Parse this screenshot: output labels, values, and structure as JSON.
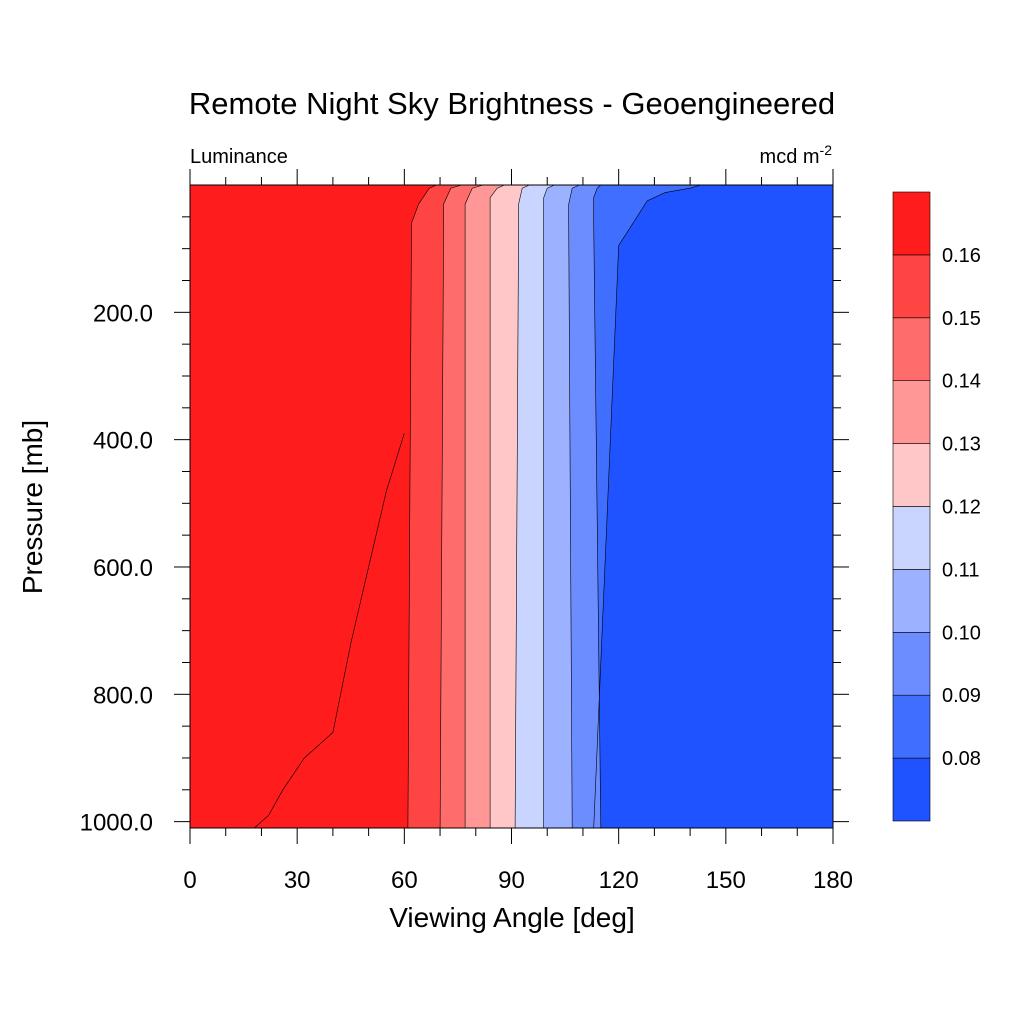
{
  "chart_data": {
    "type": "contour",
    "title": "Remote Night Sky Brightness - Geoengineered",
    "left_string": "Luminance",
    "right_string": "mcd m",
    "right_string_exponent": "-2",
    "xlabel": "Viewing Angle [deg]",
    "ylabel": "Pressure [mb]",
    "xlim": [
      0,
      180
    ],
    "ylim": [
      0,
      1010
    ],
    "y_inverted": true,
    "xticks": [
      0,
      30,
      60,
      90,
      120,
      150,
      180
    ],
    "xtick_labels": [
      "0",
      "30",
      "60",
      "90",
      "120",
      "150",
      "180"
    ],
    "yticks": [
      200,
      400,
      600,
      800,
      1000
    ],
    "ytick_labels": [
      "200.0",
      "400.0",
      "600.0",
      "800.0",
      "1000.0"
    ],
    "levels": [
      0.08,
      0.085,
      0.09,
      0.095,
      0.1,
      0.105,
      0.11,
      0.115,
      0.12,
      0.125,
      0.13,
      0.135,
      0.14,
      0.145,
      0.15,
      0.155,
      0.16
    ],
    "colorbar_labels": [
      "0.08",
      "0.09",
      "0.10",
      "0.11",
      "0.12",
      "0.13",
      "0.14",
      "0.15",
      "0.16"
    ],
    "fill_colors": [
      "#1e53ff",
      "#406eff",
      "#6c8dff",
      "#9cb1ff",
      "#c9d5ff",
      "#ffc7c7",
      "#ff9797",
      "#ff6c6c",
      "#ff4444",
      "#ff1c1c"
    ],
    "contour_lines": [
      {
        "points": [
          [
            143,
            0
          ],
          [
            140,
            5
          ],
          [
            137,
            8
          ],
          [
            133,
            12
          ],
          [
            128,
            25
          ],
          [
            124,
            60
          ],
          [
            120,
            95
          ],
          [
            113,
            1010
          ]
        ]
      },
      {
        "points": [
          [
            115,
            0
          ],
          [
            114,
            5
          ],
          [
            113,
            20
          ],
          [
            113,
            60
          ],
          [
            115,
            1010
          ]
        ]
      },
      {
        "points": [
          [
            109,
            0
          ],
          [
            107,
            5
          ],
          [
            106,
            30
          ],
          [
            106,
            60
          ],
          [
            107,
            1010
          ]
        ]
      },
      {
        "points": [
          [
            102,
            0
          ],
          [
            100,
            5
          ],
          [
            99,
            20
          ],
          [
            99,
            60
          ],
          [
            99,
            1010
          ]
        ]
      },
      {
        "points": [
          [
            95,
            0
          ],
          [
            93,
            5
          ],
          [
            92,
            30
          ],
          [
            92,
            60
          ],
          [
            91,
            1010
          ]
        ]
      },
      {
        "points": [
          [
            88,
            0
          ],
          [
            86,
            5
          ],
          [
            84,
            20
          ],
          [
            84,
            60
          ],
          [
            84,
            1010
          ]
        ]
      },
      {
        "points": [
          [
            82,
            0
          ],
          [
            79,
            5
          ],
          [
            77,
            30
          ],
          [
            77,
            60
          ],
          [
            77,
            1010
          ]
        ]
      },
      {
        "points": [
          [
            76,
            0
          ],
          [
            73,
            5
          ],
          [
            71,
            30
          ],
          [
            71,
            60
          ],
          [
            70,
            1010
          ]
        ]
      },
      {
        "points": [
          [
            69,
            0
          ],
          [
            67,
            5
          ],
          [
            64,
            30
          ],
          [
            62,
            60
          ],
          [
            61,
            1010
          ]
        ]
      },
      {
        "points": [
          [
            60,
            390
          ],
          [
            55,
            480
          ],
          [
            50,
            600
          ],
          [
            45,
            720
          ],
          [
            40,
            860
          ],
          [
            32,
            900
          ],
          [
            26,
            950
          ],
          [
            22,
            990
          ],
          [
            18,
            1010
          ]
        ]
      }
    ]
  }
}
